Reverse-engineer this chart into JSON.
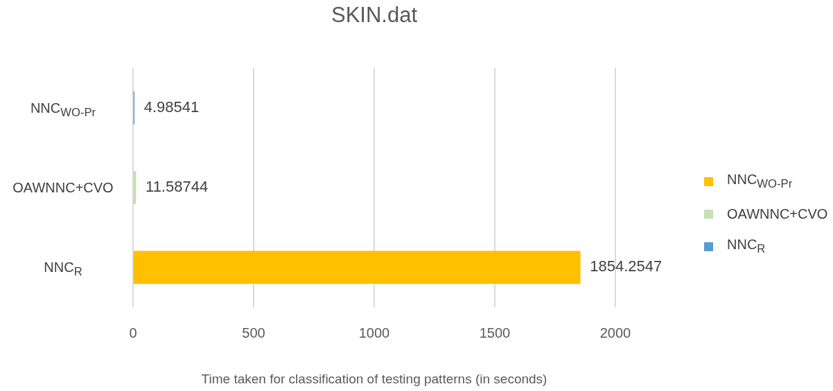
{
  "chart_data": {
    "type": "bar",
    "orientation": "horizontal",
    "title": "SKIN.dat",
    "xlabel": "Time taken for classification of testing patterns (in seconds)",
    "categories": [
      "NNC$_{WO-Pr}$",
      "OAWNNC+CVO",
      "NNC$_{R}$"
    ],
    "series": [
      {
        "name": "NNC$_{WO-Pr}$",
        "color": "#ffc000",
        "values": [
          null,
          null,
          1854.2547
        ]
      },
      {
        "name": "OAWNNC+CVO",
        "color": "#c5e0b4",
        "values": [
          null,
          11.58744,
          null
        ]
      },
      {
        "name": "NNC$_{R}$",
        "color": "#5b9bd5",
        "values": [
          4.98541,
          null,
          null
        ]
      }
    ],
    "xlim": [
      0,
      2000
    ],
    "xticks": [
      0,
      500,
      1000,
      1500,
      2000
    ],
    "grid": "x",
    "legend": "right",
    "data_labels": true
  }
}
